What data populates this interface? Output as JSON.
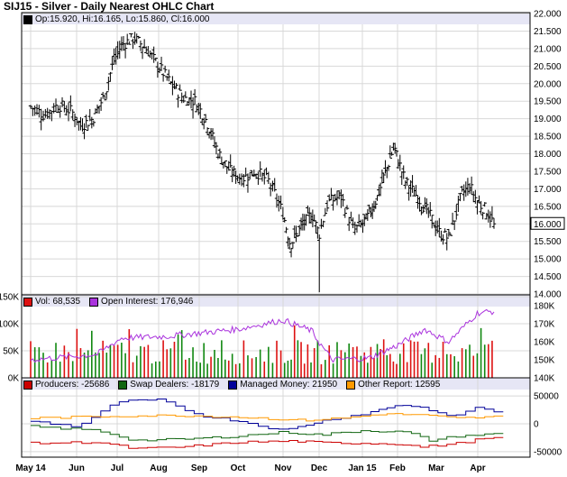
{
  "header": {
    "title": "SIJ15 - Silver - Daily Nearest OHLC Chart",
    "ohlc_legend": "Op:15.920, Hi:16.165, Lo:15.860, Cl:16.000",
    "last_price_label": "16.000"
  },
  "colors": {
    "background": "#ffffff",
    "grid": "#d8d8d8",
    "legend_bar": "#e6e6f5",
    "price_bar": "#000000",
    "vol_red": "#dd1111",
    "vol_green": "#118811",
    "open_interest": "#aa33dd",
    "producers": "#cc0000",
    "swap_dealers": "#116611",
    "managed_money": "#000099",
    "other_report": "#ff9900"
  },
  "chart_data": [
    {
      "type": "ohlc",
      "title": "SIJ15 - Silver - Daily Nearest OHLC Chart",
      "x_ticks": [
        "May 14",
        "Jun",
        "Jul",
        "Aug",
        "Sep",
        "Oct",
        "Nov",
        "Dec",
        "Jan 15",
        "Feb",
        "Mar",
        "Apr"
      ],
      "y_ticks": [
        "14.000",
        "14.500",
        "15.000",
        "15.500",
        "16.000",
        "16.500",
        "17.000",
        "17.500",
        "18.000",
        "18.500",
        "19.000",
        "19.500",
        "20.000",
        "20.500",
        "21.000",
        "21.500",
        "22.000"
      ],
      "ylim": [
        14.0,
        22.0
      ],
      "last": {
        "open": 15.92,
        "high": 16.165,
        "low": 15.86,
        "close": 16.0
      },
      "close_path": [
        {
          "month_index": 0.0,
          "close": 19.35
        },
        {
          "month_index": 0.3,
          "close": 19.1
        },
        {
          "month_index": 0.6,
          "close": 19.4
        },
        {
          "month_index": 0.9,
          "close": 19.2
        },
        {
          "month_index": 1.1,
          "close": 18.8
        },
        {
          "month_index": 1.4,
          "close": 19.0
        },
        {
          "month_index": 1.7,
          "close": 19.7
        },
        {
          "month_index": 1.9,
          "close": 20.6
        },
        {
          "month_index": 2.1,
          "close": 21.1
        },
        {
          "month_index": 2.4,
          "close": 21.3
        },
        {
          "month_index": 2.7,
          "close": 21.0
        },
        {
          "month_index": 3.0,
          "close": 20.5
        },
        {
          "month_index": 3.3,
          "close": 20.0
        },
        {
          "month_index": 3.6,
          "close": 19.6
        },
        {
          "month_index": 3.9,
          "close": 19.5
        },
        {
          "month_index": 4.2,
          "close": 18.9
        },
        {
          "month_index": 4.5,
          "close": 18.0
        },
        {
          "month_index": 4.8,
          "close": 17.5
        },
        {
          "month_index": 5.1,
          "close": 17.3
        },
        {
          "month_index": 5.4,
          "close": 17.5
        },
        {
          "month_index": 5.7,
          "close": 17.2
        },
        {
          "month_index": 6.0,
          "close": 16.3
        },
        {
          "month_index": 6.2,
          "close": 15.4
        },
        {
          "month_index": 6.5,
          "close": 15.9
        },
        {
          "month_index": 6.8,
          "close": 16.3
        },
        {
          "month_index": 7.0,
          "close": 15.7
        },
        {
          "month_index": 7.2,
          "close": 16.6
        },
        {
          "month_index": 7.5,
          "close": 16.8
        },
        {
          "month_index": 7.8,
          "close": 15.8
        },
        {
          "month_index": 8.1,
          "close": 16.1
        },
        {
          "month_index": 8.4,
          "close": 16.7
        },
        {
          "month_index": 8.7,
          "close": 17.6
        },
        {
          "month_index": 8.9,
          "close": 18.2
        },
        {
          "month_index": 9.2,
          "close": 17.2
        },
        {
          "month_index": 9.5,
          "close": 16.8
        },
        {
          "month_index": 9.8,
          "close": 16.3
        },
        {
          "month_index": 10.1,
          "close": 15.7
        },
        {
          "month_index": 10.3,
          "close": 15.6
        },
        {
          "month_index": 10.6,
          "close": 16.8
        },
        {
          "month_index": 10.8,
          "close": 17.1
        },
        {
          "month_index": 11.0,
          "close": 16.6
        },
        {
          "month_index": 11.2,
          "close": 16.4
        },
        {
          "month_index": 11.4,
          "close": 16.0
        }
      ]
    },
    {
      "type": "bar",
      "series": [
        {
          "name": "Vol",
          "legend": "Vol: 68,535"
        },
        {
          "name": "Open Interest",
          "legend": "Open Interest: 176,946"
        }
      ],
      "y_ticks_left": [
        "0K",
        "50K",
        "100K",
        "150K"
      ],
      "y_ticks_right": [
        "140K",
        "150K",
        "160K",
        "170K",
        "180K"
      ],
      "vol_ylim": [
        0,
        150000
      ],
      "oi_ylim": [
        140000,
        185000
      ],
      "last_vol": 68535,
      "last_open_interest": 176946
    },
    {
      "type": "line",
      "series": [
        {
          "name": "Producers",
          "legend": "Producers: -25686",
          "last": -25686
        },
        {
          "name": "Swap Dealers",
          "legend": "Swap Dealers: -18179",
          "last": -18179
        },
        {
          "name": "Managed Money",
          "legend": "Managed Money: 21950",
          "last": 21950
        },
        {
          "name": "Other Report",
          "legend": "Other Report: 12595",
          "last": 12595
        }
      ],
      "y_ticks": [
        "50000",
        "0",
        "-50000"
      ],
      "ylim": [
        -60000,
        60000
      ]
    }
  ]
}
